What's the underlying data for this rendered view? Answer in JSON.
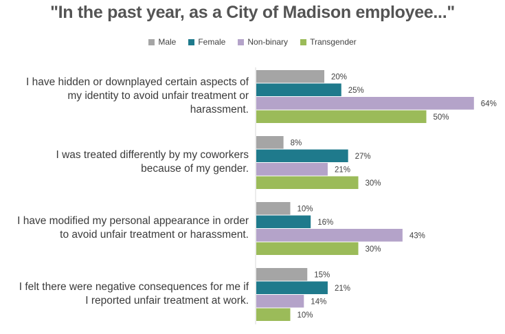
{
  "chart_data": {
    "type": "bar",
    "orientation": "horizontal",
    "title": "\"In the past year, as a City of Madison employee...\"",
    "categories": [
      [
        "I have hidden or downplayed certain aspects of",
        "my identity to avoid unfair treatment or",
        "harassment."
      ],
      [
        "I was treated differently by my coworkers",
        "because of my gender."
      ],
      [
        "I have modified my personal appearance in order",
        "to avoid unfair treatment or harassment."
      ],
      [
        "I felt there were negative consequences for me if",
        "I reported unfair treatment at work."
      ]
    ],
    "series": [
      {
        "name": "Male",
        "color": "#a5a5a5",
        "values": [
          20,
          8,
          10,
          15
        ]
      },
      {
        "name": "Female",
        "color": "#1f7a8c",
        "values": [
          25,
          27,
          16,
          21
        ]
      },
      {
        "name": "Non-binary",
        "color": "#b4a3c9",
        "values": [
          64,
          21,
          43,
          14
        ]
      },
      {
        "name": "Transgender",
        "color": "#9bbb59",
        "values": [
          50,
          30,
          30,
          10
        ]
      }
    ],
    "value_suffix": "%",
    "xlim": [
      0,
      100
    ],
    "legend_position": "top",
    "grid": false
  }
}
